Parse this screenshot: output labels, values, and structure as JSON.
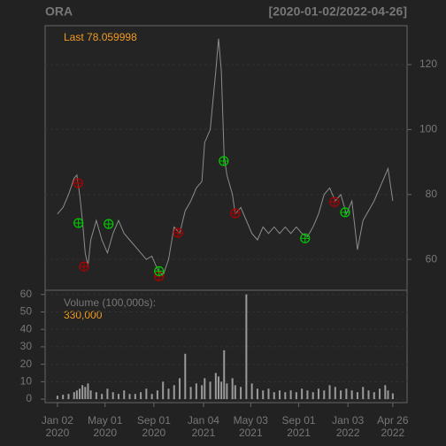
{
  "chart_data": [
    {
      "type": "line",
      "title": "ORA",
      "subtitle": "[2020-01-02/2022-04-26]",
      "annotation": "Last 78.059998",
      "x": [
        "2020-01-02",
        "2020-01-16",
        "2020-01-30",
        "2020-02-13",
        "2020-02-20",
        "2020-02-27",
        "2020-03-05",
        "2020-03-12",
        "2020-03-19",
        "2020-03-26",
        "2020-04-09",
        "2020-04-23",
        "2020-05-07",
        "2020-05-21",
        "2020-06-04",
        "2020-06-18",
        "2020-07-02",
        "2020-07-16",
        "2020-07-30",
        "2020-08-13",
        "2020-08-27",
        "2020-09-10",
        "2020-09-24",
        "2020-10-08",
        "2020-10-22",
        "2020-11-05",
        "2020-11-19",
        "2020-12-03",
        "2020-12-17",
        "2020-12-31",
        "2021-01-07",
        "2021-01-21",
        "2021-02-04",
        "2021-02-11",
        "2021-02-18",
        "2021-02-25",
        "2021-03-04",
        "2021-03-18",
        "2021-03-25",
        "2021-04-08",
        "2021-04-22",
        "2021-05-06",
        "2021-05-20",
        "2021-06-03",
        "2021-06-17",
        "2021-07-01",
        "2021-07-15",
        "2021-07-29",
        "2021-08-12",
        "2021-08-26",
        "2021-09-09",
        "2021-09-23",
        "2021-10-07",
        "2021-10-21",
        "2021-11-04",
        "2021-11-18",
        "2021-12-02",
        "2021-12-16",
        "2021-12-30",
        "2022-01-13",
        "2022-01-27",
        "2022-02-10",
        "2022-02-24",
        "2022-03-10",
        "2022-03-24",
        "2022-04-07",
        "2022-04-14",
        "2022-04-26"
      ],
      "series": [
        {
          "color": "#8c8c8c",
          "values": [
            74,
            76,
            80,
            85,
            86,
            80,
            72,
            62,
            58,
            66,
            72,
            66,
            62,
            68,
            72,
            68,
            66,
            64,
            62,
            60,
            61,
            57,
            55,
            60,
            70,
            68,
            75,
            78,
            82,
            84,
            96,
            100,
            118,
            128,
            118,
            92,
            86,
            80,
            74,
            76,
            72,
            68,
            66,
            70,
            68,
            70,
            68,
            70,
            68,
            70,
            68,
            67,
            70,
            74,
            80,
            82,
            78,
            80,
            74,
            78,
            63,
            72,
            75,
            78,
            82,
            86,
            88,
            78.059998
          ]
        }
      ],
      "markers": [
        {
          "color": "#b00000",
          "x": [
            "2020-02-23",
            "2020-03-09",
            "2020-09-14",
            "2020-11-01",
            "2021-03-25",
            "2021-11-30"
          ],
          "values": [
            83.5,
            57.8,
            54.8,
            68.2,
            74.2,
            77.7
          ]
        },
        {
          "color": "#00cc00",
          "x": [
            "2020-02-24",
            "2020-05-10",
            "2020-09-14",
            "2021-02-24",
            "2021-09-17",
            "2021-12-27"
          ],
          "values": [
            71.2,
            70.9,
            56.4,
            90.3,
            66.5,
            74.5
          ]
        }
      ],
      "xlim": [
        "2019-12-02",
        "2022-06-01"
      ],
      "ylim": [
        50.5,
        132
      ],
      "yticks": [
        60,
        80,
        100,
        120
      ],
      "grid": true
    },
    {
      "type": "bar",
      "title": "Volume (100,000s):",
      "annotation": "330,000",
      "color": "#9a9a9a",
      "x": [
        "2020-01-02",
        "2020-01-16",
        "2020-01-30",
        "2020-02-13",
        "2020-02-20",
        "2020-02-27",
        "2020-03-05",
        "2020-03-12",
        "2020-03-19",
        "2020-03-26",
        "2020-04-09",
        "2020-04-23",
        "2020-05-07",
        "2020-05-21",
        "2020-06-04",
        "2020-06-18",
        "2020-07-02",
        "2020-07-16",
        "2020-07-30",
        "2020-08-13",
        "2020-08-27",
        "2020-09-10",
        "2020-09-24",
        "2020-10-08",
        "2020-10-22",
        "2020-11-05",
        "2020-11-19",
        "2020-12-03",
        "2020-12-17",
        "2020-12-31",
        "2021-01-07",
        "2021-01-21",
        "2021-02-04",
        "2021-02-11",
        "2021-02-18",
        "2021-02-25",
        "2021-03-04",
        "2021-03-18",
        "2021-03-25",
        "2021-04-08",
        "2021-04-22",
        "2021-05-06",
        "2021-05-20",
        "2021-06-03",
        "2021-06-17",
        "2021-07-01",
        "2021-07-15",
        "2021-07-29",
        "2021-08-12",
        "2021-08-26",
        "2021-09-09",
        "2021-09-23",
        "2021-10-07",
        "2021-10-21",
        "2021-11-04",
        "2021-11-18",
        "2021-12-02",
        "2021-12-16",
        "2021-12-30",
        "2022-01-13",
        "2022-01-27",
        "2022-02-10",
        "2022-02-24",
        "2022-03-10",
        "2022-03-24",
        "2022-04-07",
        "2022-04-14",
        "2022-04-26"
      ],
      "values": [
        2,
        2.5,
        3,
        4,
        5,
        6,
        8,
        7,
        9,
        5,
        4,
        3,
        6,
        4,
        3,
        5,
        3,
        3,
        4,
        6,
        3,
        5,
        10,
        6,
        8,
        12,
        26,
        7,
        9,
        8,
        12,
        10,
        15,
        13,
        10,
        28,
        9,
        12,
        8,
        7,
        60,
        9,
        6,
        5,
        6,
        4,
        5,
        4,
        5,
        4,
        6,
        5,
        4,
        6,
        5,
        8,
        7,
        5,
        6,
        5,
        4,
        7,
        5,
        4,
        6,
        8,
        5,
        3.3
      ],
      "xlim": [
        "2019-12-02",
        "2022-06-01"
      ],
      "ylim": [
        -2,
        62.4
      ],
      "yticks": [
        0,
        10,
        20,
        30,
        40,
        50,
        60
      ],
      "grid": true,
      "xticks": [
        {
          "value": "2020-01-02",
          "label": [
            "Jan 02",
            "2020"
          ]
        },
        {
          "value": "2020-05-01",
          "label": [
            "May 01",
            "2020"
          ]
        },
        {
          "value": "2020-09-01",
          "label": [
            "Sep 01",
            "2020"
          ]
        },
        {
          "value": "2021-01-04",
          "label": [
            "Jan 04",
            "2021"
          ]
        },
        {
          "value": "2021-05-03",
          "label": [
            "May 03",
            "2021"
          ]
        },
        {
          "value": "2021-09-01",
          "label": [
            "Sep 01",
            "2021"
          ]
        },
        {
          "value": "2022-01-03",
          "label": [
            "Jan 03",
            "2022"
          ]
        },
        {
          "value": "2022-04-26",
          "label": [
            "Apr 26",
            "2022"
          ]
        }
      ]
    }
  ]
}
